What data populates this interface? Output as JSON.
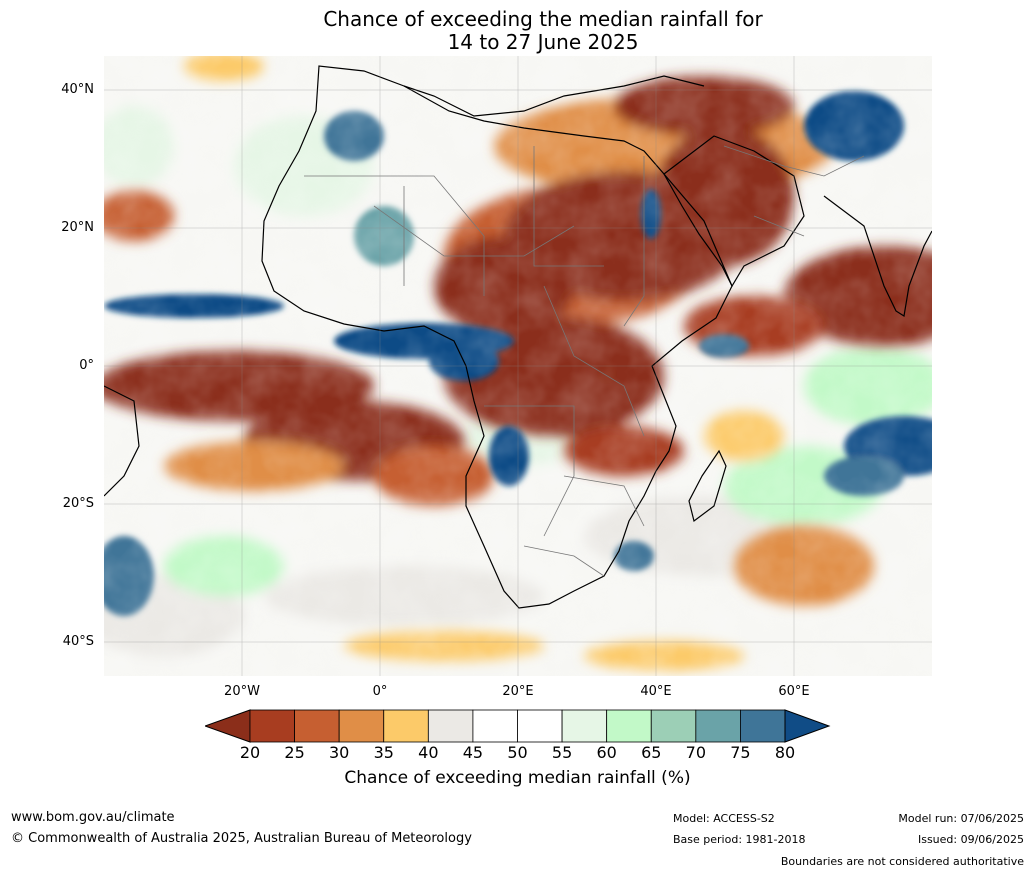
{
  "title": {
    "line1": "Chance of exceeding the median rainfall for",
    "line2": "14 to 27 June 2025"
  },
  "map": {
    "lat_labels": [
      "40°N",
      "20°N",
      "0°",
      "20°S",
      "40°S"
    ],
    "lon_labels": [
      "20°W",
      "0°",
      "20°E",
      "40°E",
      "60°E"
    ],
    "extent": {
      "lon_min": -40,
      "lon_max": 80,
      "lat_min": -45,
      "lat_max": 45
    },
    "regions": [
      {
        "name": "Sahara / North Africa",
        "category": "20"
      },
      {
        "name": "Arabian Peninsula / Red Sea area",
        "category": "20"
      },
      {
        "name": "Equatorial Atlantic",
        "category": "20"
      },
      {
        "name": "Central Africa / Congo",
        "category": "20"
      },
      {
        "name": "Arabian Sea",
        "category": "20"
      },
      {
        "name": "Gulf of Guinea",
        "category": "80"
      },
      {
        "name": "Tropical Atlantic near 8°N",
        "category": "80"
      },
      {
        "name": "Northwest Africa",
        "category": "80"
      },
      {
        "name": "Central Asia",
        "category": "80"
      },
      {
        "name": "Angola",
        "category": "80"
      },
      {
        "name": "Red Sea",
        "category": "80"
      },
      {
        "name": "Eastern Indian Ocean",
        "category": "80"
      },
      {
        "name": "Lake Victoria",
        "category": "20"
      }
    ]
  },
  "colorbar": {
    "ticks": [
      "20",
      "25",
      "30",
      "35",
      "40",
      "45",
      "50",
      "55",
      "60",
      "65",
      "70",
      "75",
      "80"
    ],
    "colors": [
      "#8b2e1a",
      "#a83d20",
      "#c65f31",
      "#e08e47",
      "#fcca69",
      "#ebe9e5",
      "#ffffff",
      "#ffffff",
      "#e6f6e6",
      "#c2f9c8",
      "#9ccfb6",
      "#6aa3a8",
      "#3f7598"
    ],
    "under_color": "#8b2e1a",
    "over_color": "#104c86",
    "label": "Chance of exceeding median rainfall (%)"
  },
  "footer": {
    "website": "www.bom.gov.au/climate",
    "copyright": "© Commonwealth of Australia 2025, Australian Bureau of Meteorology",
    "model": "Model: ACCESS-S2",
    "base_period": "Base period: 1981-2018",
    "model_run": "Model run: 07/06/2025",
    "issued": "Issued: 09/06/2025",
    "disclaimer": "Boundaries are not considered authoritative"
  }
}
